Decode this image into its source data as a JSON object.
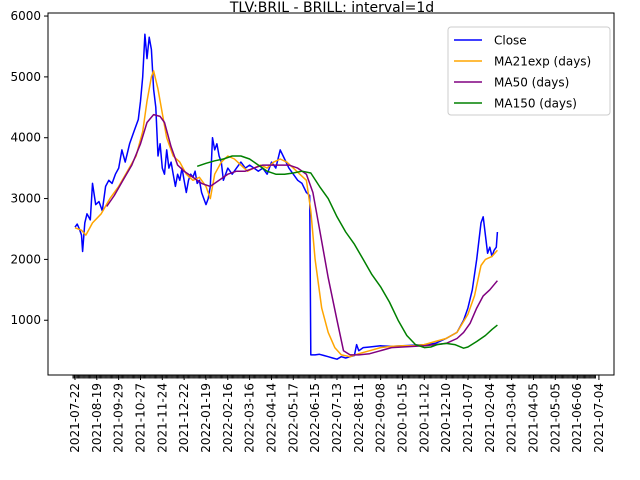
{
  "chart_data": {
    "type": "line",
    "title": "TLV:BRIL - BRILL: interval=1d",
    "xlabel": "",
    "ylabel": "",
    "ylim": [
      100,
      6050
    ],
    "yticks": [
      1000,
      2000,
      3000,
      4000,
      5000,
      6000
    ],
    "grid": false,
    "legend_placement": "top-right",
    "categories": [
      "2021-07-22",
      "2021-08-19",
      "2021-09-29",
      "2021-10-27",
      "2021-11-24",
      "2021-12-22",
      "2022-01-19",
      "2022-02-16",
      "2022-03-16",
      "2022-04-14",
      "2022-05-17",
      "2022-06-15",
      "2022-07-13",
      "2022-08-11",
      "2022-09-08",
      "2020-10-15",
      "2020-11-12",
      "2020-12-10",
      "2021-01-07",
      "2021-02-04",
      "2021-03-04",
      "2021-04-05",
      "2021-05-05",
      "2021-06-06",
      "2021-07-04"
    ],
    "series": [
      {
        "name": "Close",
        "color": "#0000ff",
        "points": [
          [
            0,
            2530
          ],
          [
            0.1,
            2580
          ],
          [
            0.2,
            2500
          ],
          [
            0.3,
            2400
          ],
          [
            0.35,
            2130
          ],
          [
            0.45,
            2600
          ],
          [
            0.55,
            2750
          ],
          [
            0.7,
            2650
          ],
          [
            0.8,
            3250
          ],
          [
            0.95,
            2900
          ],
          [
            1.1,
            2950
          ],
          [
            1.25,
            2800
          ],
          [
            1.4,
            3200
          ],
          [
            1.55,
            3300
          ],
          [
            1.7,
            3250
          ],
          [
            1.85,
            3400
          ],
          [
            2.0,
            3500
          ],
          [
            2.15,
            3800
          ],
          [
            2.3,
            3600
          ],
          [
            2.5,
            3900
          ],
          [
            2.7,
            4100
          ],
          [
            2.9,
            4300
          ],
          [
            3.0,
            4600
          ],
          [
            3.1,
            5000
          ],
          [
            3.2,
            5700
          ],
          [
            3.3,
            5300
          ],
          [
            3.4,
            5650
          ],
          [
            3.5,
            5450
          ],
          [
            3.6,
            4800
          ],
          [
            3.7,
            4500
          ],
          [
            3.8,
            3700
          ],
          [
            3.9,
            3900
          ],
          [
            4.0,
            3500
          ],
          [
            4.1,
            3400
          ],
          [
            4.2,
            3800
          ],
          [
            4.3,
            3500
          ],
          [
            4.4,
            3600
          ],
          [
            4.5,
            3400
          ],
          [
            4.6,
            3200
          ],
          [
            4.7,
            3400
          ],
          [
            4.8,
            3300
          ],
          [
            4.9,
            3500
          ],
          [
            5.0,
            3300
          ],
          [
            5.1,
            3100
          ],
          [
            5.2,
            3300
          ],
          [
            5.3,
            3400
          ],
          [
            5.4,
            3350
          ],
          [
            5.5,
            3450
          ],
          [
            5.6,
            3250
          ],
          [
            5.7,
            3300
          ],
          [
            5.8,
            3100
          ],
          [
            5.9,
            3000
          ],
          [
            6.0,
            2900
          ],
          [
            6.1,
            3000
          ],
          [
            6.2,
            3200
          ],
          [
            6.3,
            4000
          ],
          [
            6.4,
            3800
          ],
          [
            6.5,
            3900
          ],
          [
            6.6,
            3700
          ],
          [
            6.7,
            3600
          ],
          [
            6.8,
            3300
          ],
          [
            6.9,
            3400
          ],
          [
            7.0,
            3500
          ],
          [
            7.2,
            3400
          ],
          [
            7.4,
            3500
          ],
          [
            7.6,
            3600
          ],
          [
            7.8,
            3500
          ],
          [
            8.0,
            3550
          ],
          [
            8.2,
            3500
          ],
          [
            8.4,
            3450
          ],
          [
            8.6,
            3500
          ],
          [
            8.8,
            3400
          ],
          [
            9.0,
            3600
          ],
          [
            9.2,
            3500
          ],
          [
            9.4,
            3800
          ],
          [
            9.6,
            3650
          ],
          [
            9.8,
            3500
          ],
          [
            10.0,
            3400
          ],
          [
            10.2,
            3300
          ],
          [
            10.4,
            3250
          ],
          [
            10.6,
            3100
          ],
          [
            10.75,
            3050
          ],
          [
            10.8,
            430
          ],
          [
            11.0,
            430
          ],
          [
            11.2,
            440
          ],
          [
            11.4,
            420
          ],
          [
            11.6,
            400
          ],
          [
            11.8,
            380
          ],
          [
            12.0,
            360
          ],
          [
            12.2,
            400
          ],
          [
            12.4,
            380
          ],
          [
            12.6,
            400
          ],
          [
            12.8,
            420
          ],
          [
            12.9,
            600
          ],
          [
            13.0,
            500
          ],
          [
            13.2,
            550
          ],
          [
            13.5,
            560
          ],
          [
            14.0,
            580
          ],
          [
            14.5,
            570
          ],
          [
            15.0,
            580
          ],
          [
            15.5,
            590
          ],
          [
            16.0,
            600
          ],
          [
            16.5,
            620
          ],
          [
            17.0,
            700
          ],
          [
            17.5,
            800
          ],
          [
            17.8,
            1000
          ],
          [
            18.0,
            1200
          ],
          [
            18.2,
            1500
          ],
          [
            18.4,
            2000
          ],
          [
            18.6,
            2600
          ],
          [
            18.7,
            2700
          ],
          [
            18.8,
            2400
          ],
          [
            18.9,
            2100
          ],
          [
            19.0,
            2200
          ],
          [
            19.1,
            2050
          ],
          [
            19.2,
            2150
          ],
          [
            19.3,
            2200
          ],
          [
            19.35,
            2450
          ]
        ]
      },
      {
        "name": "MA21exp (days)",
        "color": "#ffa500",
        "points": [
          [
            0,
            2520
          ],
          [
            0.3,
            2480
          ],
          [
            0.5,
            2400
          ],
          [
            0.8,
            2600
          ],
          [
            1.2,
            2750
          ],
          [
            1.6,
            3000
          ],
          [
            2.0,
            3200
          ],
          [
            2.4,
            3450
          ],
          [
            2.8,
            3700
          ],
          [
            3.1,
            4100
          ],
          [
            3.3,
            4600
          ],
          [
            3.5,
            5000
          ],
          [
            3.6,
            5100
          ],
          [
            3.8,
            4800
          ],
          [
            4.0,
            4400
          ],
          [
            4.2,
            4000
          ],
          [
            4.5,
            3700
          ],
          [
            4.8,
            3600
          ],
          [
            5.1,
            3400
          ],
          [
            5.4,
            3300
          ],
          [
            5.7,
            3350
          ],
          [
            6.0,
            3200
          ],
          [
            6.2,
            3000
          ],
          [
            6.4,
            3400
          ],
          [
            6.7,
            3600
          ],
          [
            7.0,
            3700
          ],
          [
            7.3,
            3650
          ],
          [
            7.6,
            3550
          ],
          [
            7.9,
            3450
          ],
          [
            8.2,
            3500
          ],
          [
            8.5,
            3550
          ],
          [
            8.8,
            3500
          ],
          [
            9.1,
            3600
          ],
          [
            9.4,
            3650
          ],
          [
            9.7,
            3600
          ],
          [
            10.0,
            3500
          ],
          [
            10.3,
            3400
          ],
          [
            10.6,
            3300
          ],
          [
            10.8,
            2800
          ],
          [
            11.0,
            2000
          ],
          [
            11.3,
            1200
          ],
          [
            11.6,
            800
          ],
          [
            11.9,
            550
          ],
          [
            12.2,
            430
          ],
          [
            12.6,
            400
          ],
          [
            13.0,
            450
          ],
          [
            13.5,
            500
          ],
          [
            14.0,
            550
          ],
          [
            14.5,
            570
          ],
          [
            15.0,
            580
          ],
          [
            15.5,
            580
          ],
          [
            16.0,
            600
          ],
          [
            16.5,
            650
          ],
          [
            17.0,
            700
          ],
          [
            17.5,
            800
          ],
          [
            18.0,
            1100
          ],
          [
            18.3,
            1400
          ],
          [
            18.6,
            1900
          ],
          [
            18.8,
            2000
          ],
          [
            19.1,
            2050
          ],
          [
            19.35,
            2150
          ]
        ]
      },
      {
        "name": "MA50 (days)",
        "color": "#800080",
        "points": [
          [
            1.45,
            2870
          ],
          [
            1.8,
            3050
          ],
          [
            2.2,
            3300
          ],
          [
            2.6,
            3550
          ],
          [
            3.0,
            3900
          ],
          [
            3.3,
            4250
          ],
          [
            3.6,
            4380
          ],
          [
            3.9,
            4350
          ],
          [
            4.1,
            4250
          ],
          [
            4.4,
            3850
          ],
          [
            4.7,
            3550
          ],
          [
            5.0,
            3450
          ],
          [
            5.4,
            3350
          ],
          [
            5.8,
            3250
          ],
          [
            6.2,
            3200
          ],
          [
            6.6,
            3300
          ],
          [
            7.0,
            3400
          ],
          [
            7.4,
            3450
          ],
          [
            7.8,
            3450
          ],
          [
            8.2,
            3500
          ],
          [
            8.6,
            3550
          ],
          [
            9.0,
            3550
          ],
          [
            9.4,
            3550
          ],
          [
            9.8,
            3550
          ],
          [
            10.2,
            3500
          ],
          [
            10.6,
            3400
          ],
          [
            10.9,
            3100
          ],
          [
            11.2,
            2500
          ],
          [
            11.6,
            1700
          ],
          [
            12.0,
            1000
          ],
          [
            12.3,
            500
          ],
          [
            12.6,
            430
          ],
          [
            13.0,
            430
          ],
          [
            13.5,
            450
          ],
          [
            14.0,
            500
          ],
          [
            14.5,
            550
          ],
          [
            15.0,
            560
          ],
          [
            15.5,
            570
          ],
          [
            16.0,
            580
          ],
          [
            16.5,
            600
          ],
          [
            17.0,
            620
          ],
          [
            17.5,
            700
          ],
          [
            17.8,
            800
          ],
          [
            18.1,
            950
          ],
          [
            18.4,
            1200
          ],
          [
            18.7,
            1400
          ],
          [
            19.0,
            1500
          ],
          [
            19.35,
            1650
          ]
        ]
      },
      {
        "name": "MA150 (days)",
        "color": "#008000",
        "points": [
          [
            5.6,
            3530
          ],
          [
            6.0,
            3580
          ],
          [
            6.4,
            3620
          ],
          [
            6.8,
            3650
          ],
          [
            7.2,
            3700
          ],
          [
            7.6,
            3700
          ],
          [
            8.0,
            3650
          ],
          [
            8.4,
            3550
          ],
          [
            8.8,
            3450
          ],
          [
            9.2,
            3400
          ],
          [
            9.6,
            3400
          ],
          [
            10.0,
            3420
          ],
          [
            10.4,
            3450
          ],
          [
            10.8,
            3420
          ],
          [
            11.2,
            3200
          ],
          [
            11.6,
            3000
          ],
          [
            12.0,
            2700
          ],
          [
            12.4,
            2450
          ],
          [
            12.8,
            2250
          ],
          [
            13.2,
            2000
          ],
          [
            13.6,
            1750
          ],
          [
            14.0,
            1550
          ],
          [
            14.4,
            1300
          ],
          [
            14.8,
            1000
          ],
          [
            15.2,
            750
          ],
          [
            15.6,
            600
          ],
          [
            16.0,
            550
          ],
          [
            16.3,
            560
          ],
          [
            16.6,
            600
          ],
          [
            17.0,
            620
          ],
          [
            17.4,
            600
          ],
          [
            17.8,
            540
          ],
          [
            18.0,
            560
          ],
          [
            18.4,
            650
          ],
          [
            18.8,
            750
          ],
          [
            19.1,
            850
          ],
          [
            19.35,
            920
          ]
        ]
      }
    ]
  }
}
